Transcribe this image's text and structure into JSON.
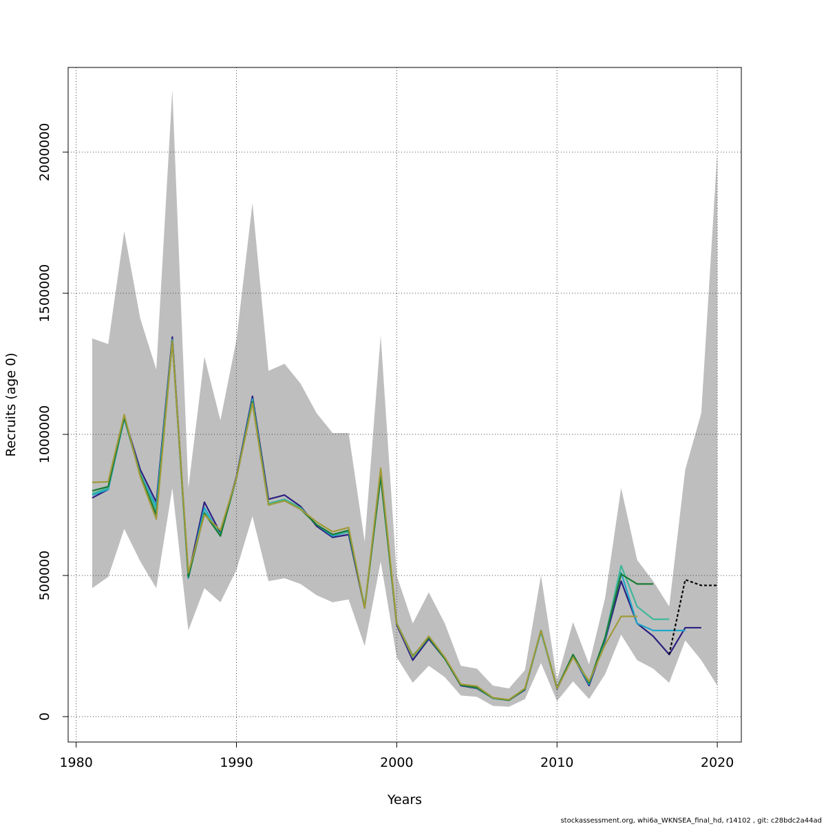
{
  "footer": "stockassessment.org, whi6a_WKNSEA_final_hd, r14102 , git: c28bdc2a44ad",
  "chart_data": {
    "type": "line",
    "xlabel": "Years",
    "ylabel": "Recruits (age 0)",
    "xlim": [
      1979.5,
      2021.5
    ],
    "ylim": [
      -90000,
      2300000
    ],
    "xticks": [
      1980,
      1990,
      2000,
      2010,
      2020
    ],
    "yticks": [
      0,
      500000,
      1000000,
      1500000,
      2000000
    ],
    "grid": true,
    "legend": "none",
    "confidence_band": {
      "color": "#bebebe",
      "x": [
        1981,
        1982,
        1983,
        1984,
        1985,
        1986,
        1987,
        1988,
        1989,
        1990,
        1991,
        1992,
        1993,
        1994,
        1995,
        1996,
        1997,
        1998,
        1999,
        2000,
        2001,
        2002,
        2003,
        2004,
        2005,
        2006,
        2007,
        2008,
        2009,
        2010,
        2011,
        2012,
        2013,
        2014,
        2015,
        2016,
        2017,
        2018,
        2019,
        2020
      ],
      "upper": [
        1340000,
        1320000,
        1720000,
        1410000,
        1230000,
        2220000,
        810000,
        1275000,
        1050000,
        1335000,
        1820000,
        1225000,
        1250000,
        1180000,
        1075000,
        1005000,
        1005000,
        620000,
        1350000,
        500000,
        330000,
        440000,
        330000,
        180000,
        170000,
        110000,
        100000,
        165000,
        500000,
        130000,
        335000,
        185000,
        420000,
        810000,
        555000,
        480000,
        390000,
        875000,
        1075000,
        2000000
      ],
      "lower": [
        455000,
        495000,
        665000,
        550000,
        455000,
        810000,
        305000,
        455000,
        405000,
        520000,
        710000,
        480000,
        490000,
        470000,
        430000,
        405000,
        415000,
        250000,
        550000,
        210000,
        120000,
        180000,
        140000,
        75000,
        70000,
        38000,
        35000,
        62000,
        190000,
        55000,
        125000,
        62000,
        150000,
        290000,
        200000,
        170000,
        120000,
        270000,
        200000,
        110000
      ]
    },
    "series": [
      {
        "color": "#2a1f80",
        "x": [
          1981,
          1982,
          1983,
          1984,
          1985,
          1986,
          1987,
          1988,
          1989,
          1990,
          1991,
          1992,
          1993,
          1994,
          1995,
          1996,
          1997,
          1998,
          1999,
          2000,
          2001,
          2002,
          2003,
          2004,
          2005,
          2006,
          2007,
          2008,
          2009,
          2010,
          2011,
          2012,
          2013,
          2014,
          2015,
          2016,
          2017,
          2018,
          2019
        ],
        "values": [
          775000,
          805000,
          1060000,
          875000,
          760000,
          1345000,
          500000,
          760000,
          650000,
          850000,
          1135000,
          770000,
          785000,
          745000,
          675000,
          635000,
          645000,
          385000,
          860000,
          325000,
          200000,
          275000,
          205000,
          110000,
          100000,
          65000,
          58000,
          95000,
          305000,
          98000,
          215000,
          110000,
          270000,
          480000,
          330000,
          285000,
          220000,
          315000,
          315000
        ]
      },
      {
        "color": "#1fa6c9",
        "x": [
          1981,
          1982,
          1983,
          1984,
          1985,
          1986,
          1987,
          1988,
          1989,
          1990,
          1991,
          1992,
          1993,
          1994,
          1995,
          1996,
          1997,
          1998,
          1999,
          2000,
          2001,
          2002,
          2003,
          2004,
          2005,
          2006,
          2007,
          2008,
          2009,
          2010,
          2011,
          2012,
          2013,
          2014,
          2015,
          2016,
          2017,
          2018
        ],
        "values": [
          785000,
          805000,
          1055000,
          860000,
          745000,
          1335000,
          490000,
          740000,
          640000,
          845000,
          1125000,
          755000,
          770000,
          740000,
          680000,
          640000,
          655000,
          390000,
          850000,
          330000,
          210000,
          280000,
          205000,
          112000,
          102000,
          65000,
          58000,
          97000,
          300000,
          100000,
          215000,
          115000,
          275000,
          510000,
          330000,
          305000,
          305000,
          305000
        ]
      },
      {
        "color": "#3fb69a",
        "x": [
          1981,
          1982,
          1983,
          1984,
          1985,
          1986,
          1987,
          1988,
          1989,
          1990,
          1991,
          1992,
          1993,
          1994,
          1995,
          1996,
          1997,
          1998,
          1999,
          2000,
          2001,
          2002,
          2003,
          2004,
          2005,
          2006,
          2007,
          2008,
          2009,
          2010,
          2011,
          2012,
          2013,
          2014,
          2015,
          2016,
          2017
        ],
        "values": [
          790000,
          810000,
          1060000,
          860000,
          730000,
          1335000,
          495000,
          725000,
          645000,
          845000,
          1120000,
          755000,
          770000,
          740000,
          680000,
          645000,
          655000,
          390000,
          850000,
          330000,
          212000,
          280000,
          205000,
          112000,
          102000,
          65000,
          58000,
          97000,
          305000,
          100000,
          218000,
          118000,
          280000,
          535000,
          390000,
          345000,
          345000
        ]
      },
      {
        "color": "#1a7a35",
        "x": [
          1981,
          1982,
          1983,
          1984,
          1985,
          1986,
          1987,
          1988,
          1989,
          1990,
          1991,
          1992,
          1993,
          1994,
          1995,
          1996,
          1997,
          1998,
          1999,
          2000,
          2001,
          2002,
          2003,
          2004,
          2005,
          2006,
          2007,
          2008,
          2009,
          2010,
          2011,
          2012,
          2013,
          2014,
          2015,
          2016
        ],
        "values": [
          800000,
          815000,
          1060000,
          855000,
          715000,
          1330000,
          495000,
          720000,
          640000,
          845000,
          1115000,
          750000,
          765000,
          735000,
          680000,
          645000,
          660000,
          385000,
          850000,
          330000,
          215000,
          280000,
          205000,
          112000,
          103000,
          66000,
          58000,
          98000,
          305000,
          102000,
          220000,
          120000,
          280000,
          505000,
          470000,
          470000
        ]
      },
      {
        "color": "#a09a38",
        "x": [
          1981,
          1982,
          1983,
          1984,
          1985,
          1986,
          1987,
          1988,
          1989,
          1990,
          1991,
          1992,
          1993,
          1994,
          1995,
          1996,
          1997,
          1998,
          1999,
          2000,
          2001,
          2002,
          2003,
          2004,
          2005,
          2006,
          2007,
          2008,
          2009,
          2010,
          2011,
          2012,
          2013,
          2014,
          2015
        ],
        "values": [
          830000,
          832000,
          1070000,
          850000,
          700000,
          1330000,
          510000,
          715000,
          660000,
          845000,
          1110000,
          750000,
          765000,
          735000,
          690000,
          655000,
          670000,
          385000,
          880000,
          330000,
          212000,
          285000,
          210000,
          115000,
          108000,
          67000,
          60000,
          100000,
          305000,
          100000,
          210000,
          125000,
          255000,
          355000,
          355000
        ]
      },
      {
        "color": "#000000",
        "dash": "4,3",
        "x": [
          2017,
          2018,
          2019,
          2020
        ],
        "values": [
          220000,
          485000,
          465000,
          465000
        ]
      }
    ]
  }
}
